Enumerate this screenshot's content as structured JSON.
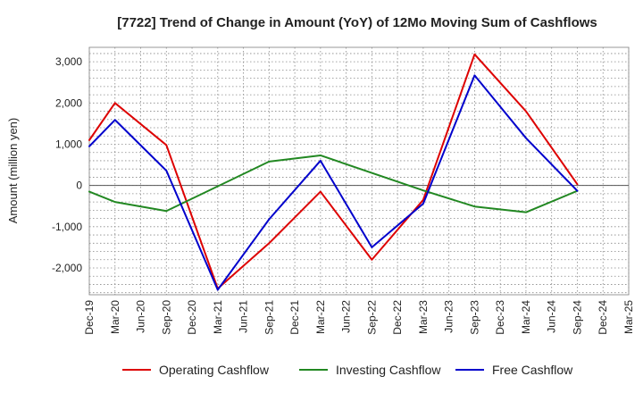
{
  "chart_data": {
    "type": "line",
    "title": "[7722]  Trend of Change in Amount (YoY) of 12Mo Moving Sum of Cashflows",
    "xlabel": "",
    "ylabel": "Amount (million yen)",
    "ylim": [
      -2650,
      3350
    ],
    "yticks": [
      3000,
      2000,
      1000,
      0,
      -1000,
      -2000
    ],
    "ytick_labels": [
      "3,000",
      "2,000",
      "1,000",
      "0",
      "-1,000",
      "-2,000"
    ],
    "categories": [
      "Dec-19",
      "Mar-20",
      "Jun-20",
      "Sep-20",
      "Dec-20",
      "Mar-21",
      "Jun-21",
      "Sep-21",
      "Dec-21",
      "Mar-22",
      "Jun-22",
      "Sep-22",
      "Dec-22",
      "Mar-23",
      "Jun-23",
      "Sep-23",
      "Dec-23",
      "Mar-24",
      "Jun-24",
      "Sep-24",
      "Dec-24",
      "Mar-25"
    ],
    "grid": true,
    "legend_position": "bottom",
    "series": [
      {
        "name": "Operating Cashflow",
        "color": "#dd0000",
        "values": [
          1100,
          2000,
          null,
          980,
          null,
          -2500,
          null,
          -1400,
          null,
          -150,
          null,
          -1800,
          null,
          -350,
          null,
          3180,
          null,
          1800,
          null,
          30,
          null,
          null
        ]
      },
      {
        "name": "Investing Cashflow",
        "color": "#228822",
        "values": [
          -150,
          -400,
          null,
          -620,
          null,
          null,
          null,
          580,
          null,
          730,
          null,
          null,
          null,
          -120,
          null,
          -510,
          null,
          -650,
          null,
          -130,
          null,
          null
        ]
      },
      {
        "name": "Free Cashflow",
        "color": "#0000cc",
        "values": [
          950,
          1590,
          null,
          360,
          null,
          -2530,
          null,
          -820,
          null,
          600,
          null,
          -1500,
          null,
          -440,
          null,
          2670,
          null,
          1150,
          null,
          -130,
          null,
          null
        ]
      }
    ]
  }
}
